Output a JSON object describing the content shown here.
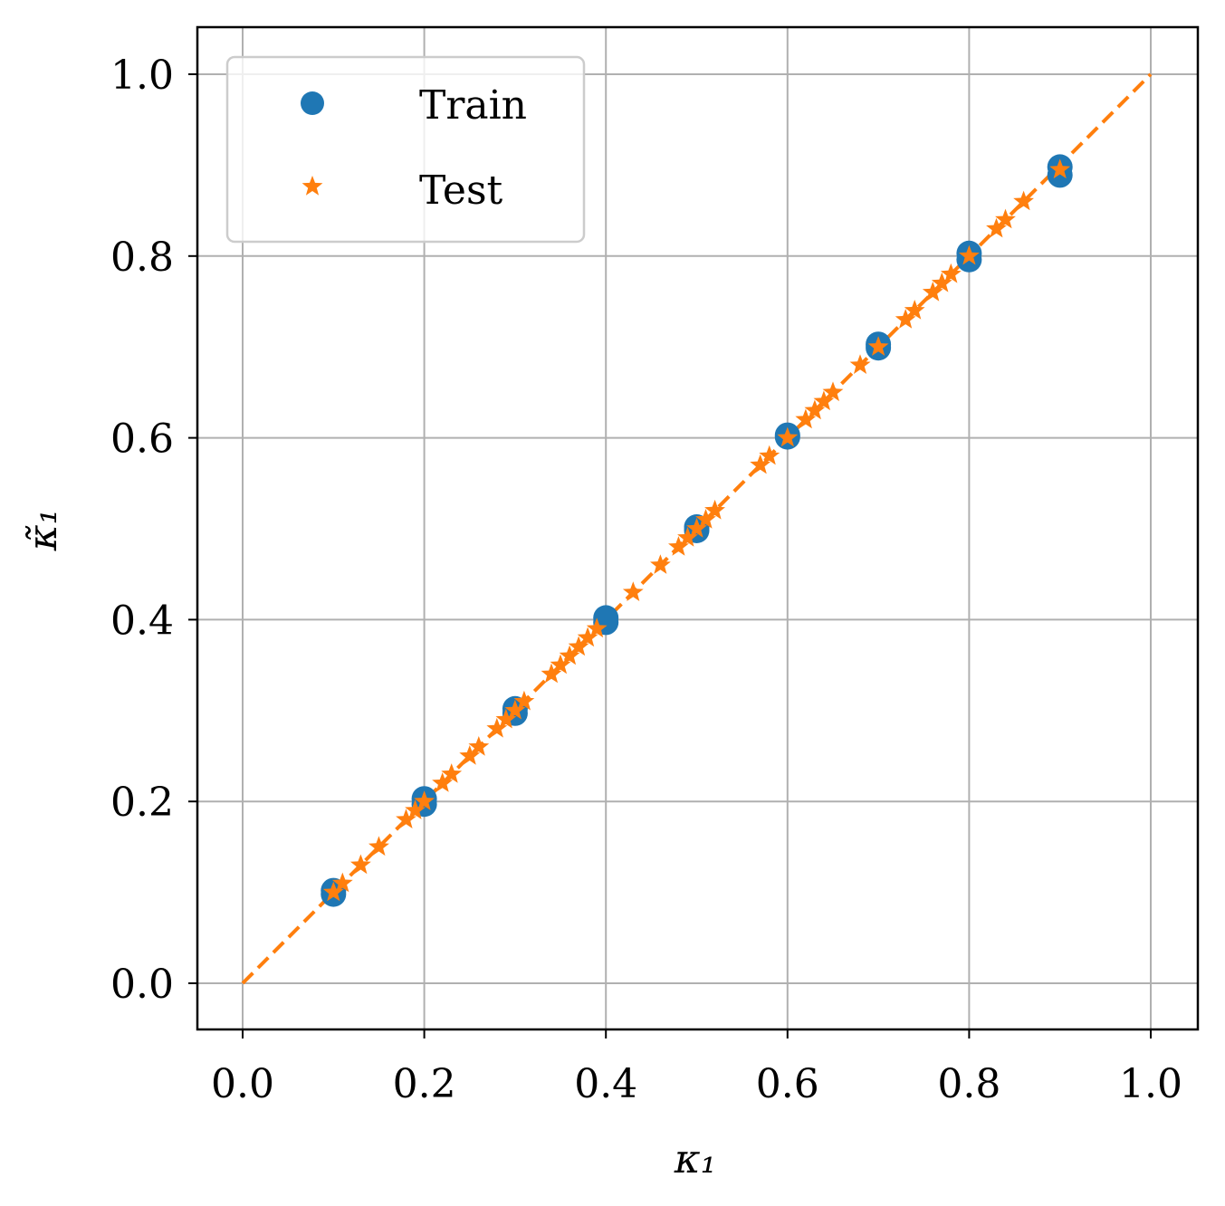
{
  "chart_data": {
    "type": "scatter",
    "xlabel": "κ₁",
    "ylabel": "κ̃₁",
    "xlim": [
      -0.05,
      1.05
    ],
    "ylim": [
      -0.05,
      1.05
    ],
    "xticks": [
      "0.0",
      "0.2",
      "0.4",
      "0.6",
      "0.8",
      "1.0"
    ],
    "yticks": [
      "0.0",
      "0.2",
      "0.4",
      "0.6",
      "0.8",
      "1.0"
    ],
    "grid": true,
    "legend_position": "upper-left",
    "colors": {
      "train": "#1f77b4",
      "test": "#ff7f0e",
      "identity": "#ff7f0e",
      "grid": "#b0b0b0"
    },
    "reference_line": {
      "style": "dashed",
      "x": [
        0.0,
        1.0
      ],
      "y": [
        0.0,
        1.0
      ]
    },
    "series": [
      {
        "name": "Train",
        "marker": "circle",
        "x": [
          0.1,
          0.1,
          0.2,
          0.2,
          0.3,
          0.3,
          0.4,
          0.4,
          0.5,
          0.5,
          0.6,
          0.6,
          0.7,
          0.7,
          0.8,
          0.8,
          0.9,
          0.9
        ],
        "y": [
          0.098,
          0.102,
          0.197,
          0.203,
          0.297,
          0.302,
          0.397,
          0.402,
          0.498,
          0.502,
          0.601,
          0.603,
          0.699,
          0.703,
          0.796,
          0.803,
          0.889,
          0.898
        ]
      },
      {
        "name": "Test",
        "marker": "star",
        "x": [
          0.1,
          0.11,
          0.13,
          0.15,
          0.18,
          0.19,
          0.2,
          0.22,
          0.23,
          0.25,
          0.26,
          0.28,
          0.29,
          0.3,
          0.31,
          0.34,
          0.35,
          0.36,
          0.37,
          0.38,
          0.39,
          0.43,
          0.46,
          0.48,
          0.49,
          0.5,
          0.51,
          0.52,
          0.57,
          0.58,
          0.6,
          0.62,
          0.63,
          0.64,
          0.65,
          0.68,
          0.7,
          0.73,
          0.74,
          0.76,
          0.77,
          0.78,
          0.8,
          0.83,
          0.84,
          0.86,
          0.9
        ],
        "y": [
          0.1,
          0.11,
          0.13,
          0.15,
          0.18,
          0.19,
          0.2,
          0.22,
          0.23,
          0.25,
          0.26,
          0.28,
          0.29,
          0.3,
          0.31,
          0.34,
          0.35,
          0.36,
          0.37,
          0.38,
          0.39,
          0.43,
          0.46,
          0.48,
          0.49,
          0.5,
          0.51,
          0.52,
          0.57,
          0.58,
          0.6,
          0.62,
          0.63,
          0.64,
          0.65,
          0.68,
          0.7,
          0.73,
          0.74,
          0.76,
          0.77,
          0.78,
          0.8,
          0.83,
          0.84,
          0.86,
          0.895
        ]
      }
    ]
  }
}
